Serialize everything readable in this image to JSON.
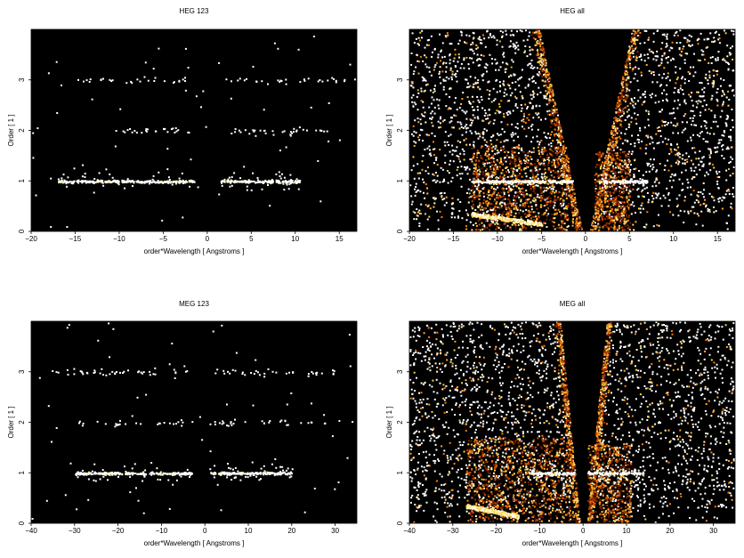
{
  "chart_data": [
    {
      "type": "heatmap",
      "title": "HEG 123",
      "xlabel": "order*Wavelength [ Angstroms ]",
      "ylabel": "Order [ 1 ]",
      "xlim": [
        -20,
        17
      ],
      "ylim": [
        0,
        4
      ],
      "xticks": [
        -20,
        -15,
        -10,
        -5,
        0,
        5,
        10,
        15
      ],
      "yticks": [
        0,
        1,
        2,
        3
      ],
      "xticklabels": [
        "−20",
        "−15",
        "−10",
        "−5",
        "0",
        "5",
        "10",
        "15"
      ],
      "yticklabels": [
        "0",
        "1",
        "2",
        "3"
      ],
      "background": "#000000",
      "bands": [
        {
          "order": 1,
          "segments": [
            [
              -17,
              -1.5
            ],
            [
              1.5,
              10.5
            ]
          ],
          "brightness": 1.0
        },
        {
          "order": 2,
          "segments": [
            [
              -12,
              -2
            ],
            [
              2,
              14
            ]
          ],
          "brightness": 0.5
        },
        {
          "order": 3,
          "segments": [
            [
              -16,
              -2
            ],
            [
              2,
              16
            ]
          ],
          "brightness": 0.35
        }
      ],
      "background_noise": "none"
    },
    {
      "type": "heatmap",
      "title": "HEG all",
      "xlabel": "order*Wavelength [ Angstroms ]",
      "ylabel": "Order [ 1 ]",
      "xlim": [
        -20,
        17
      ],
      "ylim": [
        0,
        4
      ],
      "xticks": [
        -20,
        -15,
        -10,
        -5,
        0,
        5,
        10,
        15
      ],
      "yticks": [
        0,
        1,
        2,
        3
      ],
      "xticklabels": [
        "−20",
        "−15",
        "−10",
        "−5",
        "0",
        "5",
        "10",
        "15"
      ],
      "yticklabels": [
        "0",
        "1",
        "2",
        "3"
      ],
      "background": "#000000",
      "bands": [
        {
          "order": 1,
          "segments": [
            [
              -13,
              -1.5
            ],
            [
              1.5,
              7
            ]
          ],
          "brightness": 1.0
        }
      ],
      "background_noise": "dense"
    },
    {
      "type": "heatmap",
      "title": "MEG 123",
      "xlabel": "order*Wavelength [ Angstroms ]",
      "ylabel": "Order [ 1 ]",
      "xlim": [
        -40,
        35
      ],
      "ylim": [
        0,
        4
      ],
      "xticks": [
        -40,
        -30,
        -20,
        -10,
        0,
        10,
        20,
        30
      ],
      "yticks": [
        0,
        1,
        2,
        3
      ],
      "xticklabels": [
        "−40",
        "−30",
        "−20",
        "−10",
        "0",
        "10",
        "20",
        "30"
      ],
      "yticklabels": [
        "0",
        "1",
        "2",
        "3"
      ],
      "background": "#000000",
      "bands": [
        {
          "order": 1,
          "segments": [
            [
              -30,
              -3
            ],
            [
              1,
              20
            ]
          ],
          "brightness": 1.0
        },
        {
          "order": 2,
          "segments": [
            [
              -30,
              -5
            ],
            [
              1,
              28
            ]
          ],
          "brightness": 0.4
        },
        {
          "order": 3,
          "segments": [
            [
              -36,
              -4
            ],
            [
              2,
              30
            ]
          ],
          "brightness": 0.5
        }
      ],
      "background_noise": "none"
    },
    {
      "type": "heatmap",
      "title": "MEG all",
      "xlabel": "order*Wavelength [ Angstroms ]",
      "ylabel": "Order [ 1 ]",
      "xlim": [
        -40,
        35
      ],
      "ylim": [
        0,
        4
      ],
      "xticks": [
        -40,
        -30,
        -20,
        -10,
        0,
        10,
        20,
        30
      ],
      "yticks": [
        0,
        1,
        2,
        3
      ],
      "xticklabels": [
        "−40",
        "−30",
        "−20",
        "−10",
        "0",
        "10",
        "20",
        "30"
      ],
      "yticklabels": [
        "0",
        "1",
        "2",
        "3"
      ],
      "background": "#000000",
      "bands": [
        {
          "order": 1,
          "segments": [
            [
              -13,
              -2
            ],
            [
              1,
              14
            ]
          ],
          "brightness": 1.0
        }
      ],
      "background_noise": "dense"
    }
  ],
  "colors": {
    "hot": [
      "#ff7f00",
      "#ffaa22",
      "#ffd24a",
      "#fff1a0",
      "#ffffff"
    ],
    "dim": [
      "#6a1a00",
      "#9a2f00",
      "#c94a00"
    ]
  }
}
